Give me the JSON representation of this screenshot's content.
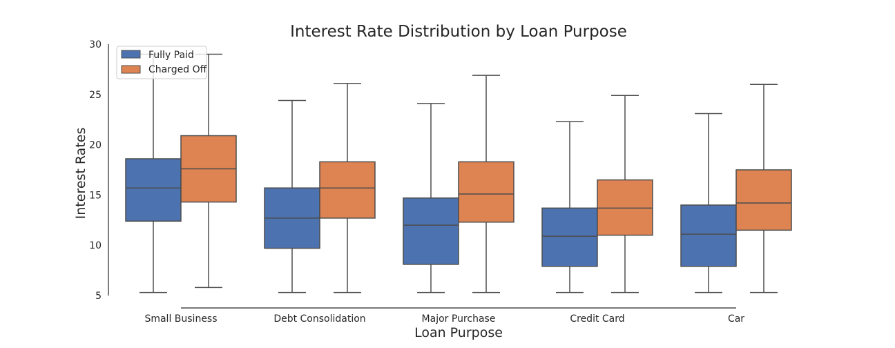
{
  "chart_data": {
    "type": "box",
    "title": "Interest Rate Distribution by Loan Purpose",
    "xlabel": "Loan Purpose",
    "ylabel": "Interest Rates",
    "categories": [
      "Small Business",
      "Debt Consolidation",
      "Major Purchase",
      "Credit Card",
      "Car"
    ],
    "y_ticks": [
      5,
      10,
      15,
      20,
      25,
      30
    ],
    "ylim": [
      5,
      30
    ],
    "grid": false,
    "legend_position": "top-left",
    "series": [
      {
        "name": "Fully Paid",
        "color": "#4c72b0",
        "boxes": [
          {
            "min": 5.3,
            "q1": 12.4,
            "median": 15.7,
            "q3": 18.6,
            "max": 29.0
          },
          {
            "min": 5.3,
            "q1": 9.7,
            "median": 12.7,
            "q3": 15.7,
            "max": 24.4
          },
          {
            "min": 5.3,
            "q1": 8.1,
            "median": 12.0,
            "q3": 14.7,
            "max": 24.1
          },
          {
            "min": 5.3,
            "q1": 7.9,
            "median": 10.9,
            "q3": 13.7,
            "max": 22.3
          },
          {
            "min": 5.3,
            "q1": 7.9,
            "median": 11.1,
            "q3": 14.0,
            "max": 23.1
          }
        ]
      },
      {
        "name": "Charged Off",
        "color": "#dd8452",
        "boxes": [
          {
            "min": 5.8,
            "q1": 14.3,
            "median": 17.6,
            "q3": 20.9,
            "max": 29.0
          },
          {
            "min": 5.3,
            "q1": 12.7,
            "median": 15.7,
            "q3": 18.3,
            "max": 26.1
          },
          {
            "min": 5.3,
            "q1": 12.3,
            "median": 15.1,
            "q3": 18.3,
            "max": 26.9
          },
          {
            "min": 5.3,
            "q1": 11.0,
            "median": 13.7,
            "q3": 16.5,
            "max": 24.9
          },
          {
            "min": 5.3,
            "q1": 11.5,
            "median": 14.2,
            "q3": 17.5,
            "max": 26.0
          }
        ]
      }
    ]
  }
}
